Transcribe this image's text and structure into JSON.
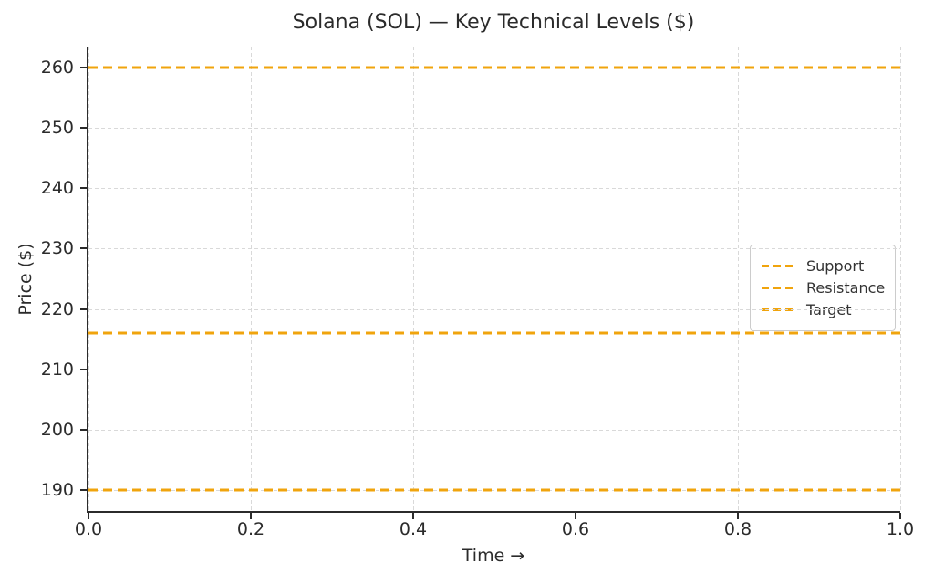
{
  "colors": {
    "line_orange": "#f0a40d",
    "text": "#2b2b2b",
    "grid": "#d9d9d9",
    "spine": "#2b2b2b",
    "legend_border": "#cccccc",
    "legend_text": "#333333"
  },
  "chart_data": {
    "type": "line",
    "title": "Solana (SOL) — Key Technical Levels ($)",
    "xlabel": "Time →",
    "ylabel": "Price ($)",
    "xlim": [
      0.0,
      1.0
    ],
    "ylim": [
      186.5,
      263.5
    ],
    "x_ticks": [
      "0.0",
      "0.2",
      "0.4",
      "0.6",
      "0.8",
      "1.0"
    ],
    "x_tick_values": [
      0.0,
      0.2,
      0.4,
      0.6,
      0.8,
      1.0
    ],
    "y_ticks": [
      "190",
      "200",
      "210",
      "220",
      "230",
      "240",
      "250",
      "260"
    ],
    "y_tick_values": [
      190,
      200,
      210,
      220,
      230,
      240,
      250,
      260
    ],
    "grid": true,
    "grid_style": "dashed",
    "legend_position": "center right",
    "series": [
      {
        "name": "Support",
        "type": "horizontal-line",
        "level": 190,
        "color": "#f0a40d",
        "linestyle": "dashed"
      },
      {
        "name": "Resistance",
        "type": "horizontal-line",
        "level": 216,
        "color": "#f0a40d",
        "linestyle": "dashed"
      },
      {
        "name": "Target",
        "type": "horizontal-line",
        "level": 260,
        "color": "#f0a40d",
        "linestyle": "dashed"
      }
    ]
  }
}
